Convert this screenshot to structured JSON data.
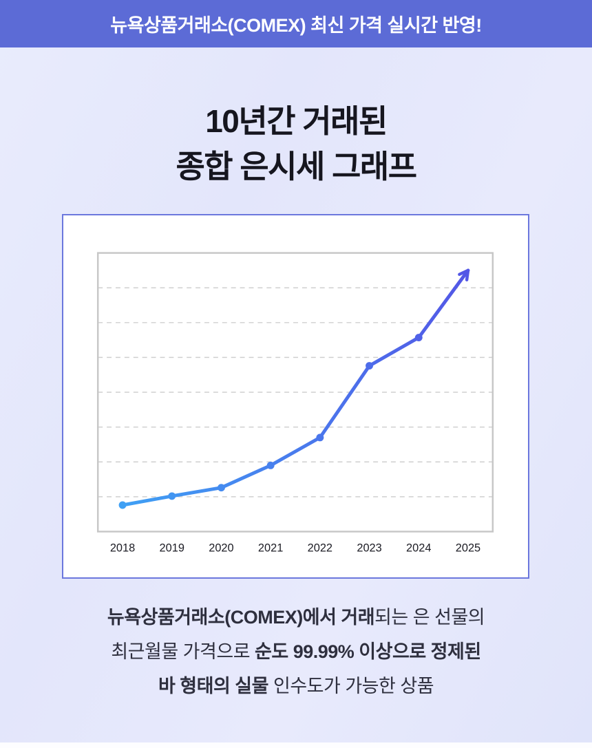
{
  "banner": {
    "text": "뉴욕상품거래소(COMEX) 최신 가격 실시간 반영!",
    "bg_color": "#5c6bd6",
    "text_color": "#ffffff"
  },
  "title": {
    "line1": "10년간 거래된",
    "line2": "종합 은시세 그래프"
  },
  "chart_data": {
    "type": "line",
    "title": "",
    "xlabel": "",
    "ylabel": "",
    "categories": [
      "2018",
      "2019",
      "2020",
      "2021",
      "2022",
      "2023",
      "2024",
      "2025"
    ],
    "values": [
      0.76,
      1.02,
      1.26,
      1.9,
      2.7,
      4.76,
      5.57,
      7.5
    ],
    "ylim": [
      0,
      8
    ],
    "gridlines_at": [
      1,
      2,
      3,
      4,
      5,
      6,
      7
    ],
    "grid_style": "dashed horizontal, no y-axis tick labels",
    "legend_position": "none",
    "line_gradient": [
      "#3fa0f4",
      "#5357e6"
    ],
    "point_radius": 5.5,
    "line_width": 5,
    "arrow_end_on_last_point": true,
    "plot_border_color": "#c7c7c7",
    "gridline_color": "#cfcfcf",
    "axis_label_color": "#1c1c24"
  },
  "description": {
    "lines": [
      {
        "segments": [
          {
            "text": "뉴욕상품거래소(COMEX)에서 거래",
            "bold": true
          },
          {
            "text": "되는 은 선물의",
            "bold": false
          }
        ]
      },
      {
        "segments": [
          {
            "text": "최근월물 가격으로 ",
            "bold": false
          },
          {
            "text": "순도 99.99% 이상으로 정제된",
            "bold": true
          }
        ]
      },
      {
        "segments": [
          {
            "text": "바 형태의 실물",
            "bold": true
          },
          {
            "text": " 인수도가 가능한 상품",
            "bold": false
          }
        ]
      }
    ]
  },
  "colors": {
    "page_background": "#e4e7fb",
    "banner_background": "#5c6bd6",
    "card_background": "#ffffff",
    "card_border": "#6b77dd",
    "title_text": "#16161f",
    "description_text": "#2e2f3e"
  }
}
